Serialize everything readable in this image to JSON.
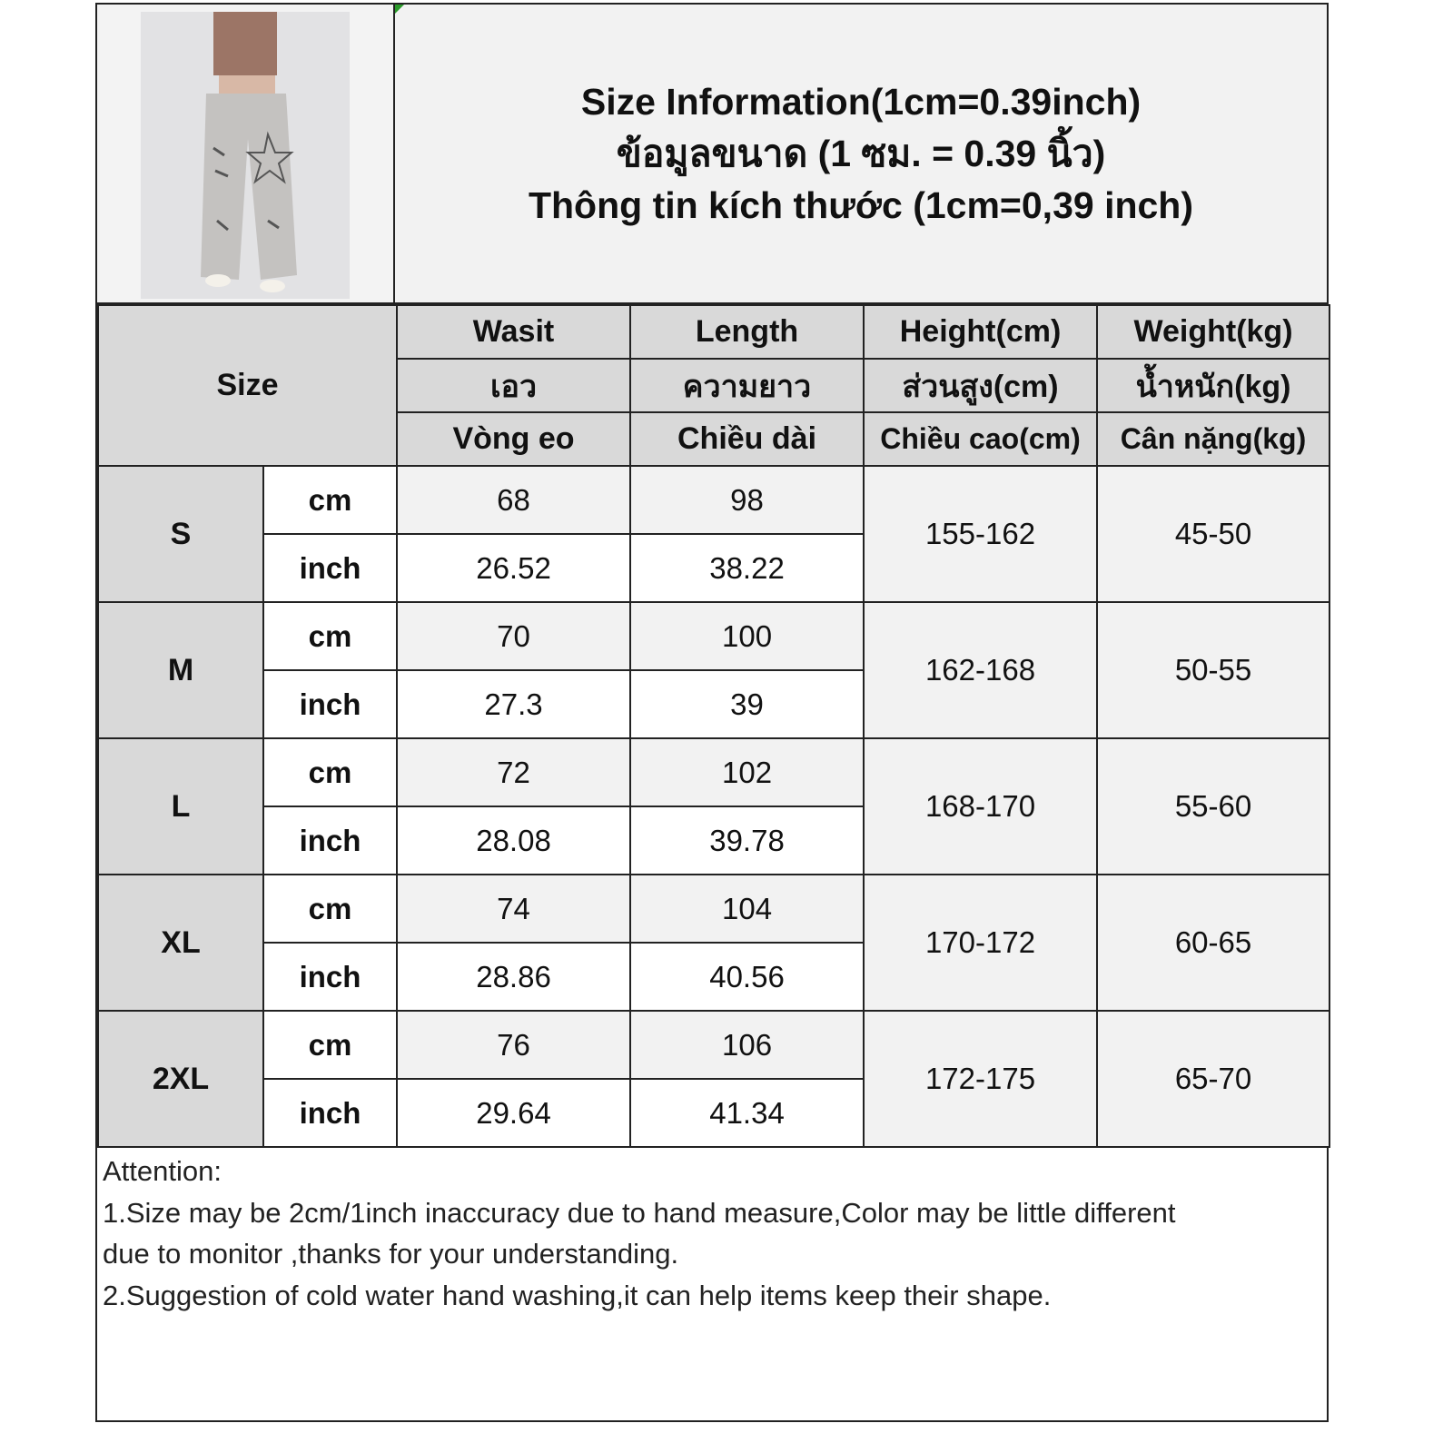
{
  "title": {
    "line1": "Size Information(1cm=0.39inch)",
    "line2": "ข้อมูลขนาด (1 ซม. = 0.39 นิ้ว)",
    "line3": "Thông tin kích thước (1cm=0,39 inch)"
  },
  "header": {
    "size_label": "Size",
    "columns": [
      {
        "en": "Wasit",
        "th": "เอว",
        "vi": "Vòng eo"
      },
      {
        "en": "Length",
        "th": "ความยาว",
        "vi": "Chiều dài"
      },
      {
        "en": "Height(cm)",
        "th": "ส่วนสูง(cm)",
        "vi": "Chiều cao(cm)"
      },
      {
        "en": "Weight(kg)",
        "th": "น้ำหนัก(kg)",
        "vi": "Cân nặng(kg)"
      }
    ]
  },
  "units": {
    "cm": "cm",
    "inch": "inch"
  },
  "sizes": [
    {
      "size": "S",
      "waist_cm": "68",
      "length_cm": "98",
      "waist_inch": "26.52",
      "length_inch": "38.22",
      "height": "155-162",
      "weight": "45-50"
    },
    {
      "size": "M",
      "waist_cm": "70",
      "length_cm": "100",
      "waist_inch": "27.3",
      "length_inch": "39",
      "height": "162-168",
      "weight": "50-55"
    },
    {
      "size": "L",
      "waist_cm": "72",
      "length_cm": "102",
      "waist_inch": "28.08",
      "length_inch": "39.78",
      "height": "168-170",
      "weight": "55-60"
    },
    {
      "size": "XL",
      "waist_cm": "74",
      "length_cm": "104",
      "waist_inch": "28.86",
      "length_inch": "40.56",
      "height": "170-172",
      "weight": "60-65"
    },
    {
      "size": "2XL",
      "waist_cm": "76",
      "length_cm": "106",
      "waist_inch": "29.64",
      "length_inch": "41.34",
      "height": "172-175",
      "weight": "65-70"
    }
  ],
  "notes": [
    "Attention:",
    "1.Size may be 2cm/1inch inaccuracy due to hand measure,Color may be little different",
    "due to monitor ,thanks for your understanding.",
    "2.Suggestion of cold water hand washing,it can help items keep their shape."
  ]
}
